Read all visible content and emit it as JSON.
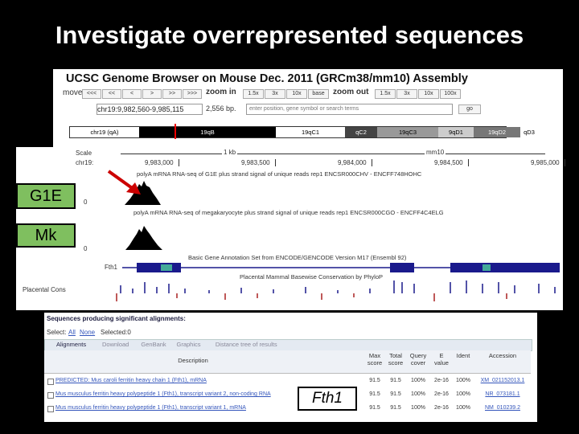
{
  "title": "Investigate overrepresented sequences",
  "browser": {
    "header": "UCSC Genome Browser on Mouse Dec. 2011 (GRCm38/mm10) Assembly",
    "move_label": "move",
    "move_buttons": [
      "<<<",
      "<<",
      "<",
      ">",
      ">>",
      ">>>"
    ],
    "zoom_in_label": "zoom in",
    "zoom_in_buttons": [
      "1.5x",
      "3x",
      "10x",
      "base"
    ],
    "zoom_out_label": "zoom out",
    "zoom_out_buttons": [
      "1.5x",
      "3x",
      "10x",
      "100x"
    ],
    "position": "chr19:9,982,560-9,985,115",
    "size": "2,556 bp.",
    "search_placeholder": "enter position, gene symbol or search terms",
    "go": "go",
    "ideogram": [
      "chr19 (qA)",
      "19qB",
      "19qC1",
      "qC2",
      "19qC3",
      "9qD1",
      "19qD2",
      "qD3"
    ],
    "scale_label": "Scale",
    "chrom_label": "chr19:",
    "scale_bar": "1 kb",
    "assembly": "mm10",
    "coordinates": [
      "9,983,000",
      "9,983,500",
      "9,984,000",
      "9,984,500",
      "9,985,000"
    ],
    "tracks": [
      "polyA mRNA RNA-seq of G1E plus strand signal of unique reads rep1 ENCSR000CHV - ENCFF748HOHC",
      "polyA mRNA RNA-seq of megakaryocyte plus strand signal of unique reads rep1 ENCSR000CGO - ENCFF4C4ELG",
      "Basic Gene Annotation Set from ENCODE/GENCODE Version M17 (Ensembl 92)",
      "Placental Mammal Basewise Conservation by PhyloP"
    ],
    "gene": "Fth1",
    "cons_label": "Placental Cons",
    "zero": "0"
  },
  "callouts": {
    "g1e": "G1E",
    "mk": "Mk",
    "fth1": "Fth1"
  },
  "blast": {
    "title": "Sequences producing significant alignments:",
    "select": "Select:",
    "all": "All",
    "none": "None",
    "selected": "Selected:0",
    "toolbar": [
      "Alignments",
      "Download",
      "GenBank",
      "Graphics",
      "Distance tree of results"
    ],
    "columns": [
      "Description",
      "Max score",
      "Total score",
      "Query cover",
      "E value",
      "Ident",
      "Accession"
    ],
    "rows": [
      [
        "PREDICTED: Mus caroli ferritin heavy chain 1 (Fth1), mRNA",
        "91.5",
        "91.5",
        "100%",
        "2e-16",
        "100%",
        "XM_021152013.1"
      ],
      [
        "Mus musculus ferritin heavy polypeptide 1 (Fth1), transcript variant 2, non-coding RNA",
        "91.5",
        "91.5",
        "100%",
        "2e-16",
        "100%",
        "NR_073181.1"
      ],
      [
        "Mus musculus ferritin heavy polypeptide 1 (Fth1), transcript variant 1, mRNA",
        "91.5",
        "91.5",
        "100%",
        "2e-16",
        "100%",
        "NM_010239.2"
      ]
    ]
  }
}
